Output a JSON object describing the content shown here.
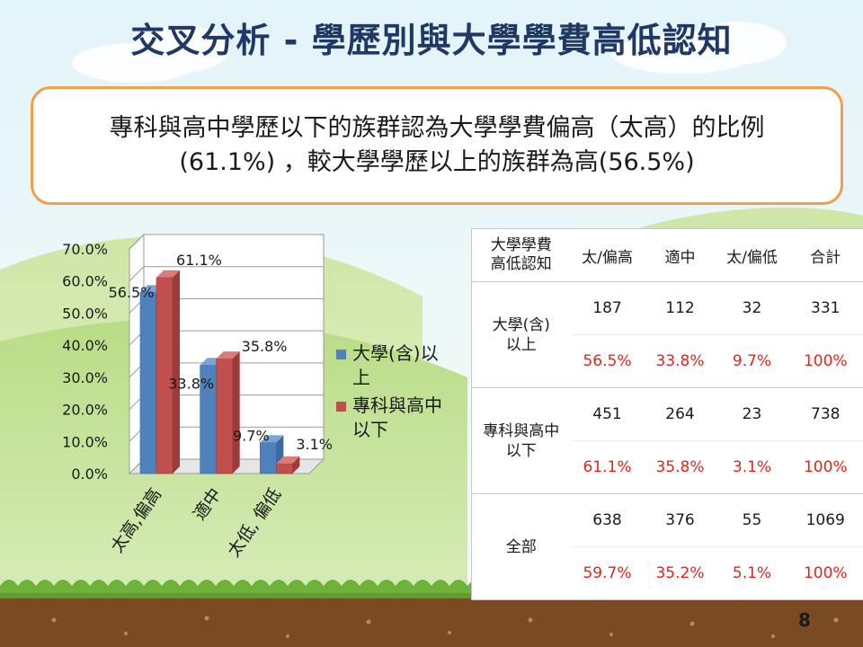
{
  "slide": {
    "title": "交叉分析 - 學歷別與大學學費高低認知",
    "callout_line1": "專科與高中學歷以下的族群認為大學學費偏高（太高）的比例",
    "callout_line2": "(61.1%) ，較大學學歷以上的族群為高(56.5%)",
    "page_number": "8"
  },
  "chart_data": {
    "type": "bar",
    "categories": [
      "太高,偏高",
      "適中",
      "太低, 偏低"
    ],
    "series": [
      {
        "name": "大學(含)以上",
        "values": [
          56.5,
          33.8,
          9.7
        ],
        "labels": [
          "56.5%",
          "33.8%",
          "9.7%"
        ],
        "color": "#4f81bd"
      },
      {
        "name": "專科與高中以下",
        "values": [
          61.1,
          35.8,
          3.1
        ],
        "labels": [
          "61.1%",
          "35.8%",
          "3.1%"
        ],
        "color": "#c0504d"
      }
    ],
    "y_ticks": [
      "0.0%",
      "10.0%",
      "20.0%",
      "30.0%",
      "40.0%",
      "50.0%",
      "60.0%",
      "70.0%"
    ],
    "ylim": [
      0,
      70
    ],
    "grid": true,
    "legend": "right",
    "legend_lines": [
      [
        "大學(含)以",
        "上"
      ],
      [
        "專科與高中",
        "以下"
      ]
    ]
  },
  "table": {
    "corner": [
      "大學學費",
      "高低認知"
    ],
    "headers": [
      "太/偏高",
      "適中",
      "太/偏低",
      "合計"
    ],
    "groups": [
      {
        "label": [
          "大學(含)",
          "以上"
        ],
        "counts": [
          "187",
          "112",
          "32",
          "331"
        ],
        "percents": [
          "56.5%",
          "33.8%",
          "9.7%",
          "100%"
        ]
      },
      {
        "label": [
          "專科與高中",
          "以下"
        ],
        "counts": [
          "451",
          "264",
          "23",
          "738"
        ],
        "percents": [
          "61.1%",
          "35.8%",
          "3.1%",
          "100%"
        ]
      },
      {
        "label": [
          "全部"
        ],
        "counts": [
          "638",
          "376",
          "55",
          "1069"
        ],
        "percents": [
          "59.7%",
          "35.2%",
          "5.1%",
          "100%"
        ]
      }
    ]
  }
}
